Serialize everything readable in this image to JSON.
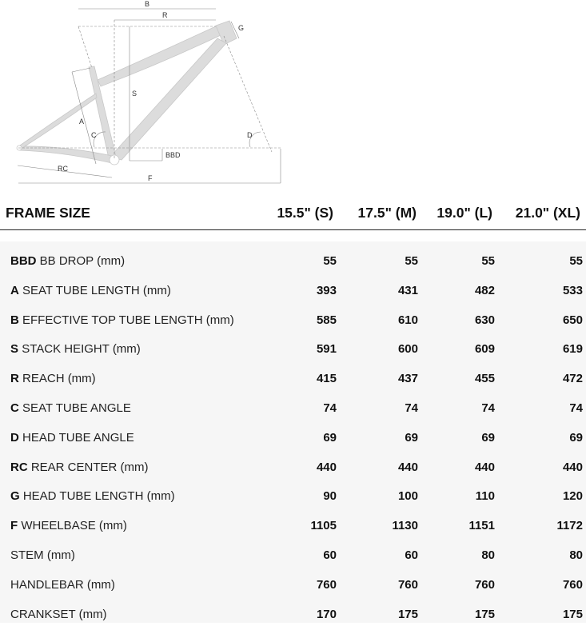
{
  "diagram": {
    "labels": {
      "B": "B",
      "R": "R",
      "G": "G",
      "S": "S",
      "A": "A",
      "C": "C",
      "D": "D",
      "BBD": "BBD",
      "RC": "RC",
      "F": "F"
    }
  },
  "header": {
    "title": "FRAME SIZE",
    "sizes": [
      "15.5\" (S)",
      "17.5\" (M)",
      "19.0\" (L)",
      "21.0\" (XL)"
    ]
  },
  "rows": [
    {
      "code": "BBD",
      "label": "BB DROP (mm)",
      "values": [
        "55",
        "55",
        "55",
        "55"
      ]
    },
    {
      "code": "A",
      "label": "SEAT TUBE LENGTH (mm)",
      "values": [
        "393",
        "431",
        "482",
        "533"
      ]
    },
    {
      "code": "B",
      "label": "EFFECTIVE TOP TUBE LENGTH (mm)",
      "values": [
        "585",
        "610",
        "630",
        "650"
      ]
    },
    {
      "code": "S",
      "label": "STACK HEIGHT (mm)",
      "values": [
        "591",
        "600",
        "609",
        "619"
      ]
    },
    {
      "code": "R",
      "label": "REACH (mm)",
      "values": [
        "415",
        "437",
        "455",
        "472"
      ]
    },
    {
      "code": "C",
      "label": "SEAT TUBE ANGLE",
      "values": [
        "74",
        "74",
        "74",
        "74"
      ]
    },
    {
      "code": "D",
      "label": "HEAD TUBE ANGLE",
      "values": [
        "69",
        "69",
        "69",
        "69"
      ]
    },
    {
      "code": "RC",
      "label": "REAR CENTER (mm)",
      "values": [
        "440",
        "440",
        "440",
        "440"
      ]
    },
    {
      "code": "G",
      "label": "HEAD TUBE LENGTH (mm)",
      "values": [
        "90",
        "100",
        "110",
        "120"
      ]
    },
    {
      "code": "F",
      "label": "WHEELBASE (mm)",
      "values": [
        "1105",
        "1130",
        "1151",
        "1172"
      ]
    },
    {
      "code": "",
      "label": "STEM (mm)",
      "values": [
        "60",
        "60",
        "80",
        "80"
      ]
    },
    {
      "code": "",
      "label": "HANDLEBAR (mm)",
      "values": [
        "760",
        "760",
        "760",
        "760"
      ]
    },
    {
      "code": "",
      "label": "CRANKSET (mm)",
      "values": [
        "170",
        "175",
        "175",
        "175"
      ]
    }
  ]
}
